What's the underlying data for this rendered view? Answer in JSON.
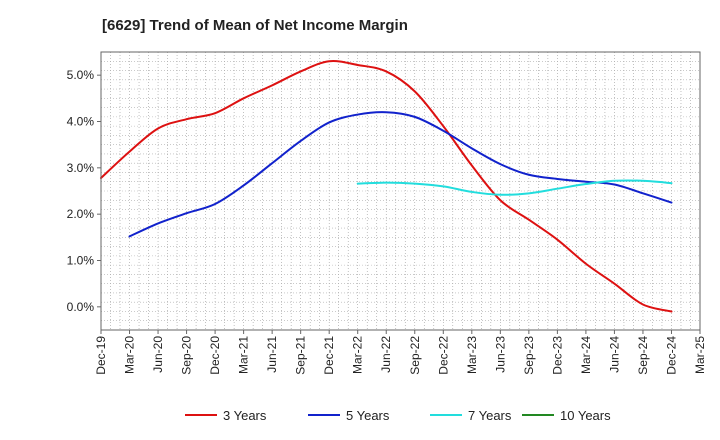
{
  "chart_data": {
    "type": "line",
    "title": "[6629]  Trend of Mean of Net Income Margin",
    "xlabel": "",
    "ylabel": "",
    "x_ticks": [
      "Dec-19",
      "Mar-20",
      "Jun-20",
      "Sep-20",
      "Dec-20",
      "Mar-21",
      "Jun-21",
      "Sep-21",
      "Dec-21",
      "Mar-22",
      "Jun-22",
      "Sep-22",
      "Dec-22",
      "Mar-23",
      "Jun-23",
      "Sep-23",
      "Dec-23",
      "Mar-24",
      "Jun-24",
      "Sep-24",
      "Dec-24",
      "Mar-25"
    ],
    "y_ticks": [
      {
        "value": 0.0,
        "label": "0.0%"
      },
      {
        "value": 1.0,
        "label": "1.0%"
      },
      {
        "value": 2.0,
        "label": "2.0%"
      },
      {
        "value": 3.0,
        "label": "3.0%"
      },
      {
        "value": 4.0,
        "label": "4.0%"
      },
      {
        "value": 5.0,
        "label": "5.0%"
      }
    ],
    "ylim": [
      -0.5,
      5.5
    ],
    "grid": true,
    "legend_position": "bottom",
    "series": [
      {
        "name": "3 Years",
        "color": "#dd1111",
        "x": [
          "Dec-19",
          "Mar-20",
          "Jun-20",
          "Sep-20",
          "Dec-20",
          "Mar-21",
          "Jun-21",
          "Sep-21",
          "Dec-21",
          "Mar-22",
          "Jun-22",
          "Sep-22",
          "Dec-22",
          "Mar-23",
          "Jun-23",
          "Sep-23",
          "Dec-23",
          "Mar-24",
          "Jun-24",
          "Sep-24",
          "Dec-24"
        ],
        "values": [
          2.78,
          3.35,
          3.85,
          4.05,
          4.18,
          4.5,
          4.78,
          5.08,
          5.3,
          5.22,
          5.08,
          4.65,
          3.9,
          3.05,
          2.3,
          1.88,
          1.45,
          0.93,
          0.5,
          0.05,
          -0.1
        ]
      },
      {
        "name": "5 Years",
        "color": "#1122cc",
        "x": [
          "Mar-20",
          "Jun-20",
          "Sep-20",
          "Dec-20",
          "Mar-21",
          "Jun-21",
          "Sep-21",
          "Dec-21",
          "Mar-22",
          "Jun-22",
          "Sep-22",
          "Dec-22",
          "Mar-23",
          "Jun-23",
          "Sep-23",
          "Dec-23",
          "Mar-24",
          "Jun-24",
          "Sep-24",
          "Dec-24"
        ],
        "values": [
          1.52,
          1.8,
          2.02,
          2.22,
          2.62,
          3.1,
          3.58,
          3.98,
          4.15,
          4.2,
          4.1,
          3.8,
          3.42,
          3.08,
          2.85,
          2.76,
          2.7,
          2.64,
          2.45,
          2.25
        ]
      },
      {
        "name": "7 Years",
        "color": "#22dddd",
        "x": [
          "Mar-22",
          "Jun-22",
          "Sep-22",
          "Dec-22",
          "Mar-23",
          "Jun-23",
          "Sep-23",
          "Dec-23",
          "Mar-24",
          "Jun-24",
          "Sep-24",
          "Dec-24"
        ],
        "values": [
          2.66,
          2.68,
          2.66,
          2.6,
          2.48,
          2.42,
          2.45,
          2.55,
          2.65,
          2.72,
          2.72,
          2.67
        ]
      },
      {
        "name": "10 Years",
        "color": "#228822",
        "x": [],
        "values": []
      }
    ]
  }
}
